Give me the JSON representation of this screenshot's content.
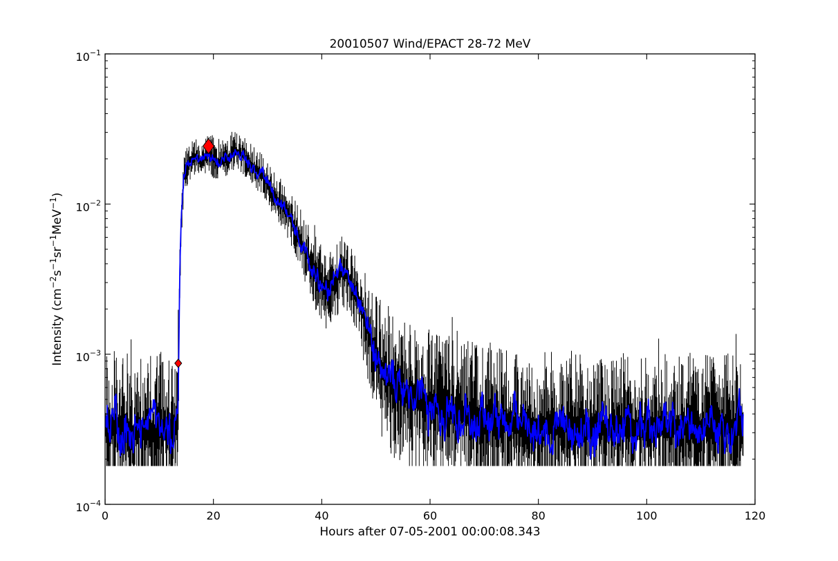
{
  "figure": {
    "background_color": "#ffffff",
    "frame_color": "#000000"
  },
  "chart_data": {
    "type": "line",
    "title": "20010507 Wind/EPACT 28-72 MeV",
    "xlabel": "Hours after 07-05-2001 00:00:08.343",
    "ylabel_plain": "Intensity (cm−2 s−1 sr−1 MeV−1)",
    "ylabel_segments": [
      {
        "text": "Intensity (cm"
      },
      {
        "sup": "−2"
      },
      {
        "text": "s"
      },
      {
        "sup": "−1"
      },
      {
        "text": "sr"
      },
      {
        "sup": "−1"
      },
      {
        "text": "MeV"
      },
      {
        "sup": "−1"
      },
      {
        "text": ")"
      }
    ],
    "xlim": [
      0,
      120
    ],
    "ylim": [
      0.0001,
      0.1
    ],
    "y_scale": "log",
    "grid": false,
    "legend": null,
    "x_ticks": [
      0,
      20,
      40,
      60,
      80,
      100,
      120
    ],
    "y_ticks": [
      {
        "base": "10",
        "exp": "−1",
        "value": 0.1
      },
      {
        "base": "10",
        "exp": "−2",
        "value": 0.01
      },
      {
        "base": "10",
        "exp": "−3",
        "value": 0.001
      },
      {
        "base": "10",
        "exp": "−4",
        "value": 0.0001
      }
    ],
    "series": [
      {
        "name": "raw intensity",
        "color": "#000000",
        "style": "noisy trace with error-bar spread"
      },
      {
        "name": "smoothed intensity",
        "color": "#0000ff",
        "style": "line"
      }
    ],
    "data_start_hour": 0,
    "data_end_hour": 117.8,
    "background_floor": 0.00018,
    "background_level": 0.00033,
    "smoothed_keypoints": [
      [
        0,
        0.00033
      ],
      [
        1,
        0.0003
      ],
      [
        2,
        0.00035
      ],
      [
        3,
        0.00031
      ],
      [
        4,
        0.00033
      ],
      [
        5,
        0.00029
      ],
      [
        6,
        0.00034
      ],
      [
        7,
        0.00031
      ],
      [
        8,
        0.00033
      ],
      [
        9,
        0.0003
      ],
      [
        10,
        0.00034
      ],
      [
        11,
        0.00031
      ],
      [
        12,
        0.00033
      ],
      [
        13,
        0.00032
      ],
      [
        13.45,
        0.00035
      ],
      [
        13.6,
        0.0009
      ],
      [
        13.8,
        0.0035
      ],
      [
        14.1,
        0.009
      ],
      [
        14.5,
        0.0145
      ],
      [
        15,
        0.0175
      ],
      [
        15.5,
        0.019
      ],
      [
        16,
        0.02
      ],
      [
        16.5,
        0.021
      ],
      [
        17,
        0.0205
      ],
      [
        17.5,
        0.0195
      ],
      [
        18,
        0.02
      ],
      [
        18.5,
        0.021
      ],
      [
        19,
        0.022
      ],
      [
        19.5,
        0.021
      ],
      [
        20,
        0.02
      ],
      [
        20.5,
        0.019
      ],
      [
        21,
        0.0185
      ],
      [
        21.5,
        0.0195
      ],
      [
        22,
        0.0205
      ],
      [
        22.5,
        0.02
      ],
      [
        23,
        0.021
      ],
      [
        23.5,
        0.022
      ],
      [
        24,
        0.023
      ],
      [
        24.5,
        0.0225
      ],
      [
        25,
        0.0215
      ],
      [
        25.5,
        0.021
      ],
      [
        26,
        0.02
      ],
      [
        26.5,
        0.0195
      ],
      [
        27,
        0.0185
      ],
      [
        28,
        0.017
      ],
      [
        29,
        0.0155
      ],
      [
        30,
        0.0135
      ],
      [
        31,
        0.012
      ],
      [
        32,
        0.0105
      ],
      [
        33,
        0.0095
      ],
      [
        34,
        0.0085
      ],
      [
        35,
        0.0072
      ],
      [
        36,
        0.0059
      ],
      [
        37,
        0.0048
      ],
      [
        38,
        0.004
      ],
      [
        39,
        0.0034
      ],
      [
        40,
        0.0029
      ],
      [
        41,
        0.0026
      ],
      [
        42,
        0.0029
      ],
      [
        43,
        0.0033
      ],
      [
        44,
        0.0036
      ],
      [
        45,
        0.0032
      ],
      [
        46,
        0.0027
      ],
      [
        47,
        0.0022
      ],
      [
        48,
        0.0017
      ],
      [
        49,
        0.0013
      ],
      [
        50,
        0.001
      ],
      [
        51,
        0.00082
      ],
      [
        52,
        0.00072
      ],
      [
        53,
        0.00065
      ],
      [
        54,
        0.0006
      ],
      [
        55,
        0.00057
      ],
      [
        56,
        0.00054
      ],
      [
        58,
        0.0005
      ],
      [
        60,
        0.00046
      ],
      [
        62,
        0.00044
      ],
      [
        64,
        0.00042
      ],
      [
        66,
        0.0004
      ],
      [
        68,
        0.00038
      ],
      [
        70,
        0.00036
      ],
      [
        73,
        0.00035
      ],
      [
        76,
        0.00034
      ],
      [
        80,
        0.00033
      ],
      [
        85,
        0.00034
      ],
      [
        90,
        0.00032
      ],
      [
        95,
        0.00033
      ],
      [
        100,
        0.00032
      ],
      [
        105,
        0.00033
      ],
      [
        110,
        0.00032
      ],
      [
        114,
        0.00033
      ],
      [
        117.8,
        0.00032
      ]
    ],
    "markers": [
      {
        "name": "onset-marker",
        "x": 13.5,
        "y": 0.00087,
        "shape": "diamond",
        "fill": "#ff0000",
        "edge": "#000000",
        "half_width": 5,
        "half_height": 6
      },
      {
        "name": "peak-marker",
        "x": 19.1,
        "y": 0.0243,
        "shape": "diamond",
        "fill": "#ff0000",
        "edge": "#000000",
        "half_width": 8,
        "half_height": 11
      }
    ]
  }
}
